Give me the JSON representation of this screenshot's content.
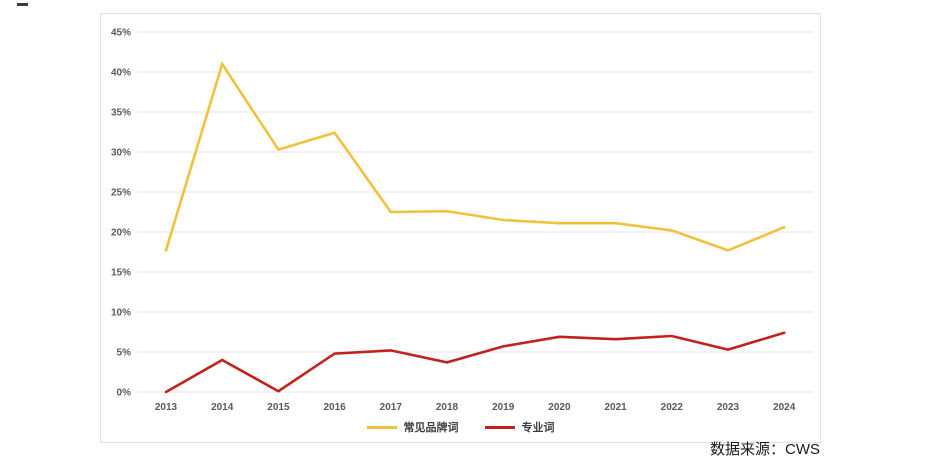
{
  "page": {
    "source_note": "数据来源：CWS"
  },
  "chart_data": {
    "type": "line",
    "title": "",
    "xlabel": "",
    "ylabel": "",
    "grid": true,
    "legend_position": "bottom-center",
    "ylim": [
      0,
      45
    ],
    "ytick_step": 5,
    "ytick_suffix": "%",
    "x": [
      "2013",
      "2014",
      "2015",
      "2016",
      "2017",
      "2018",
      "2019",
      "2020",
      "2021",
      "2022",
      "2023",
      "2024"
    ],
    "series": [
      {
        "id": "common-brand-words",
        "name": "常见品牌词",
        "color": "#F0C23C",
        "values": [
          17.7,
          41.0,
          30.3,
          32.4,
          22.5,
          22.6,
          21.5,
          21.1,
          21.1,
          20.2,
          17.7,
          20.6
        ]
      },
      {
        "id": "professional-words",
        "name": "专业词",
        "color": "#C3211C",
        "values": [
          0,
          4.0,
          0.1,
          4.8,
          5.2,
          3.7,
          5.7,
          6.9,
          6.6,
          7.0,
          5.3,
          7.4
        ]
      }
    ]
  }
}
